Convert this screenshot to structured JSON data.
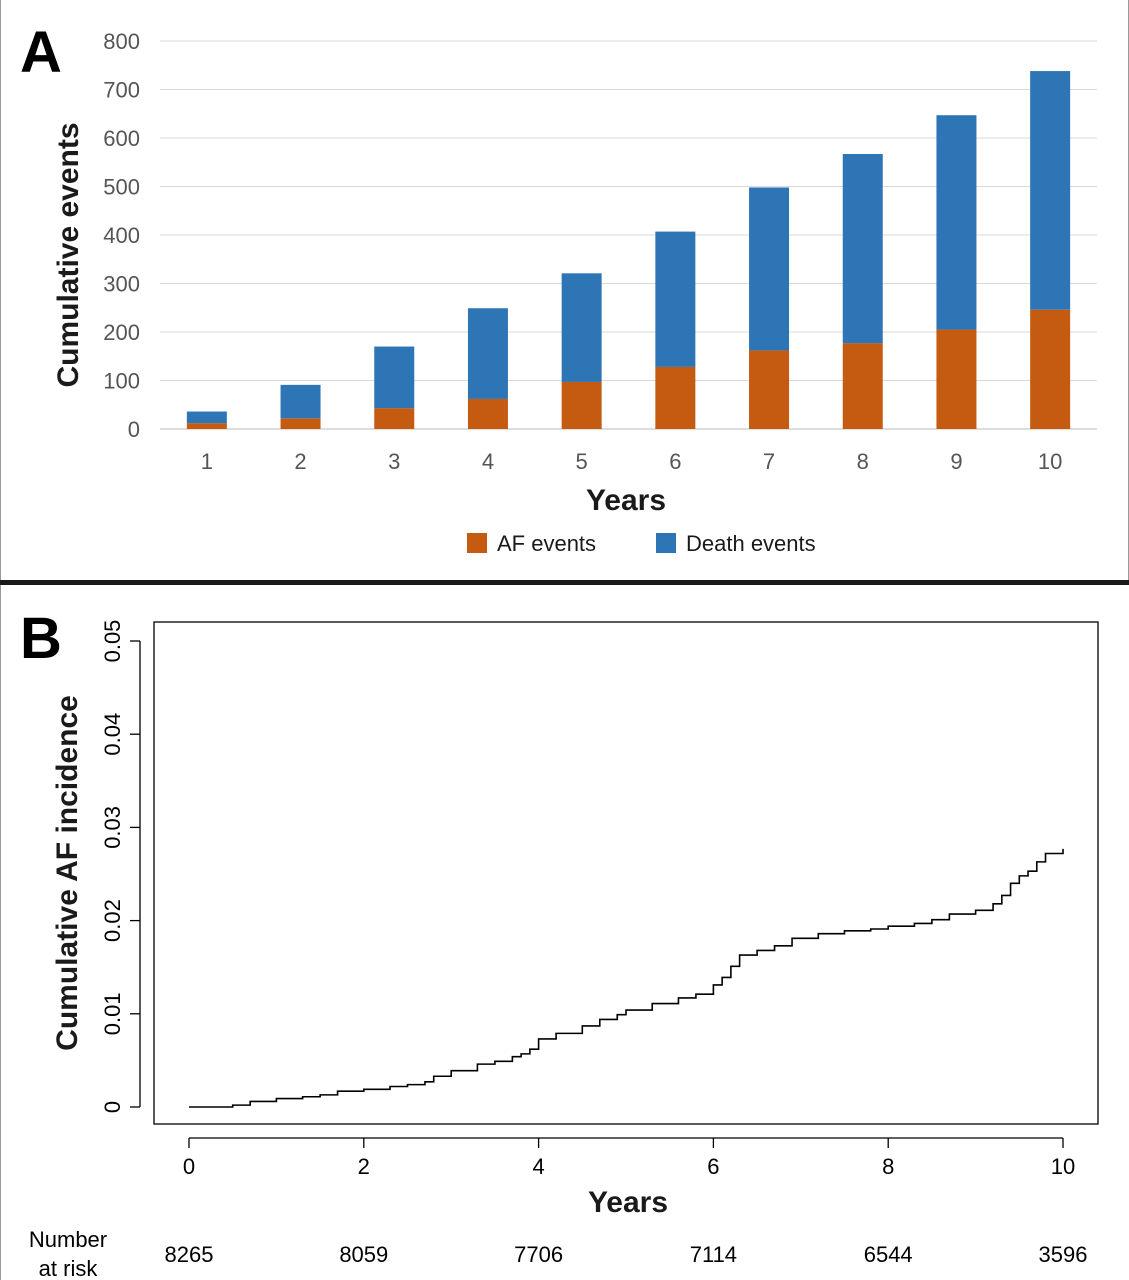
{
  "chart_data": [
    {
      "panel": "A",
      "type": "bar",
      "stacked": true,
      "title": "",
      "xlabel": "Years",
      "ylabel": "Cumulative events",
      "categories": [
        "1",
        "2",
        "3",
        "4",
        "5",
        "6",
        "7",
        "8",
        "9",
        "10"
      ],
      "series": [
        {
          "name": "AF events",
          "color": "#c55a11",
          "values": [
            12,
            22,
            43,
            62,
            97,
            128,
            162,
            177,
            205,
            246
          ]
        },
        {
          "name": "Death events",
          "color": "#2e75b6",
          "values": [
            24,
            69,
            127,
            187,
            224,
            279,
            336,
            390,
            442,
            492
          ]
        }
      ],
      "ylim": [
        0,
        800
      ],
      "yticks": [
        "0",
        "100",
        "200",
        "300",
        "400",
        "500",
        "600",
        "700",
        "800"
      ],
      "grid": true,
      "legend_position": "bottom"
    },
    {
      "panel": "B",
      "type": "line",
      "step": true,
      "title": "",
      "xlabel": "Years",
      "ylabel": "Cumulative AF incidence",
      "xlim": [
        0,
        10
      ],
      "ylim": [
        0,
        0.05
      ],
      "xticks": [
        "0",
        "2",
        "4",
        "6",
        "8",
        "10"
      ],
      "yticks": [
        "0",
        "0.01",
        "0.02",
        "0.03",
        "0.04",
        "0.05"
      ],
      "points": [
        [
          0,
          0
        ],
        [
          0.5,
          0.0002
        ],
        [
          0.7,
          0.0006
        ],
        [
          1.0,
          0.0009
        ],
        [
          1.3,
          0.0011
        ],
        [
          1.5,
          0.0013
        ],
        [
          1.7,
          0.0017
        ],
        [
          2.0,
          0.0019
        ],
        [
          2.3,
          0.0022
        ],
        [
          2.5,
          0.0024
        ],
        [
          2.7,
          0.0027
        ],
        [
          2.8,
          0.0033
        ],
        [
          3.0,
          0.0039
        ],
        [
          3.3,
          0.0046
        ],
        [
          3.5,
          0.0049
        ],
        [
          3.7,
          0.0054
        ],
        [
          3.8,
          0.0057
        ],
        [
          3.9,
          0.0062
        ],
        [
          4.0,
          0.0073
        ],
        [
          4.2,
          0.0079
        ],
        [
          4.5,
          0.0087
        ],
        [
          4.7,
          0.0094
        ],
        [
          4.9,
          0.0099
        ],
        [
          5.0,
          0.0104
        ],
        [
          5.3,
          0.0111
        ],
        [
          5.6,
          0.0117
        ],
        [
          5.8,
          0.0121
        ],
        [
          6.0,
          0.0131
        ],
        [
          6.1,
          0.0139
        ],
        [
          6.2,
          0.0151
        ],
        [
          6.3,
          0.0163
        ],
        [
          6.5,
          0.0168
        ],
        [
          6.7,
          0.0173
        ],
        [
          6.9,
          0.0181
        ],
        [
          7.2,
          0.0186
        ],
        [
          7.5,
          0.0189
        ],
        [
          7.8,
          0.0191
        ],
        [
          8.0,
          0.0194
        ],
        [
          8.3,
          0.0197
        ],
        [
          8.5,
          0.0201
        ],
        [
          8.7,
          0.0207
        ],
        [
          9.0,
          0.0211
        ],
        [
          9.2,
          0.0218
        ],
        [
          9.3,
          0.0227
        ],
        [
          9.4,
          0.024
        ],
        [
          9.5,
          0.0248
        ],
        [
          9.6,
          0.0253
        ],
        [
          9.7,
          0.0263
        ],
        [
          9.8,
          0.0272
        ],
        [
          10.0,
          0.0277
        ]
      ],
      "risk_table": {
        "label": [
          "Number",
          "at risk"
        ],
        "times": [
          0,
          2,
          4,
          6,
          8,
          10
        ],
        "counts": [
          "8265",
          "8059",
          "7706",
          "7114",
          "6544",
          "3596"
        ]
      }
    }
  ]
}
